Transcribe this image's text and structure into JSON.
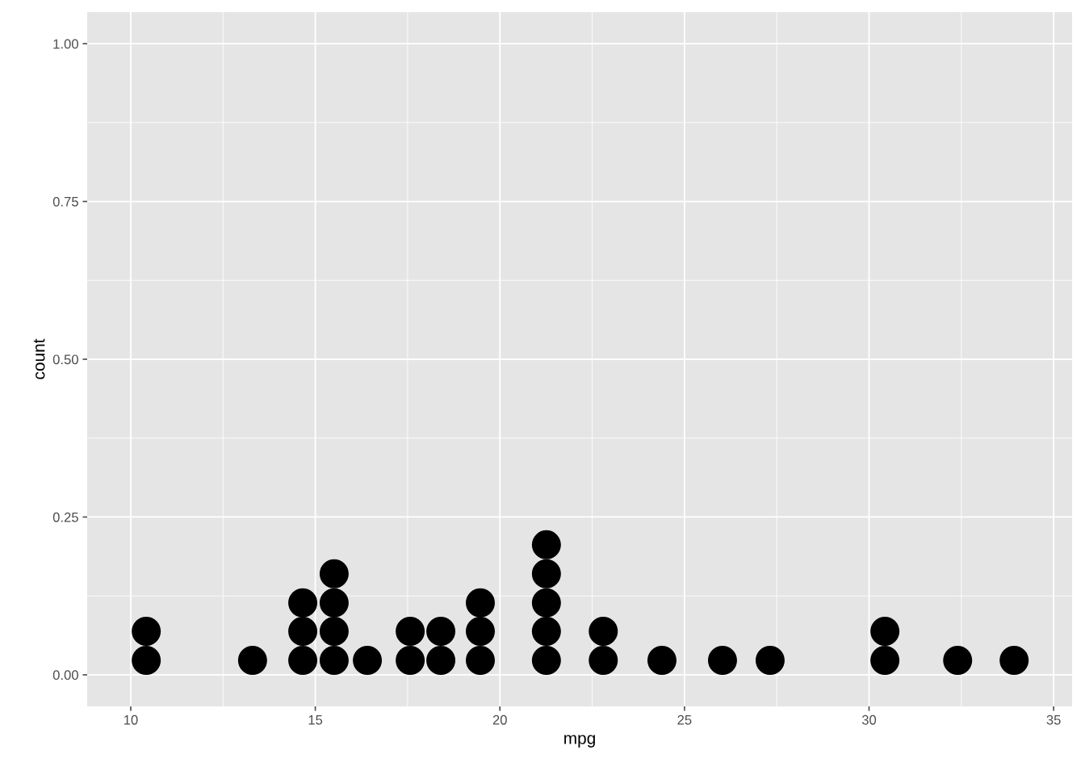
{
  "chart_data": {
    "type": "scatter",
    "xlabel": "mpg",
    "ylabel": "count",
    "x": [
      10.42,
      10.42,
      13.3,
      14.66,
      14.66,
      14.66,
      15.51,
      15.51,
      15.51,
      15.51,
      16.41,
      17.57,
      17.57,
      18.4,
      18.4,
      19.47,
      19.47,
      19.47,
      21.26,
      21.26,
      21.26,
      21.26,
      21.26,
      22.8,
      22.8,
      24.39,
      26.03,
      27.32,
      30.43,
      30.43,
      32.4,
      33.93
    ],
    "series": [
      {
        "color": "#000000",
        "values": [
          0.023,
          0.069,
          0.023,
          0.023,
          0.069,
          0.114,
          0.023,
          0.069,
          0.114,
          0.16,
          0.023,
          0.023,
          0.069,
          0.023,
          0.069,
          0.023,
          0.069,
          0.114,
          0.023,
          0.069,
          0.114,
          0.16,
          0.206,
          0.023,
          0.069,
          0.023,
          0.023,
          0.023,
          0.023,
          0.069,
          0.023,
          0.023
        ]
      }
    ],
    "marker": "circle",
    "xlim": [
      8.82,
      35.5
    ],
    "ylim": [
      -0.05,
      1.05
    ],
    "xticks": [
      10,
      15,
      20,
      25,
      30,
      35
    ],
    "yticks": [
      {
        "value": 0,
        "label": "0.00"
      },
      {
        "value": 0.25,
        "label": "0.25"
      },
      {
        "value": 0.5,
        "label": "0.50"
      },
      {
        "value": 0.75,
        "label": "0.75"
      },
      {
        "value": 1,
        "label": "1.00"
      }
    ],
    "grid": true
  }
}
